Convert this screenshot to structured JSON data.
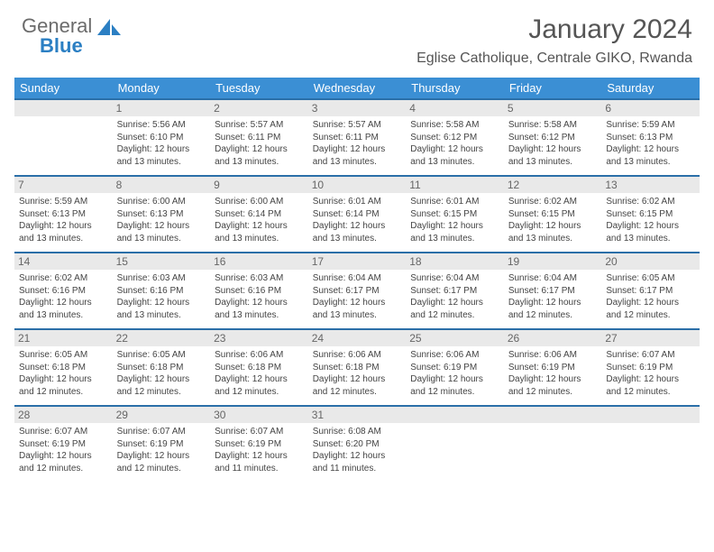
{
  "brand": {
    "part1": "General",
    "part2": "Blue"
  },
  "title": "January 2024",
  "location": "Eglise Catholique, Centrale GIKO, Rwanda",
  "colors": {
    "header_bg": "#3b8fd4",
    "header_border": "#2b6fa8",
    "daynum_bg": "#e9e9e9",
    "text": "#444444",
    "logo_gray": "#6b6b6b",
    "logo_blue": "#2b7fc3"
  },
  "day_headers": [
    "Sunday",
    "Monday",
    "Tuesday",
    "Wednesday",
    "Thursday",
    "Friday",
    "Saturday"
  ],
  "weeks": [
    [
      {
        "n": "",
        "sr": "",
        "ss": "",
        "dl": ""
      },
      {
        "n": "1",
        "sr": "5:56 AM",
        "ss": "6:10 PM",
        "dl": "12 hours and 13 minutes."
      },
      {
        "n": "2",
        "sr": "5:57 AM",
        "ss": "6:11 PM",
        "dl": "12 hours and 13 minutes."
      },
      {
        "n": "3",
        "sr": "5:57 AM",
        "ss": "6:11 PM",
        "dl": "12 hours and 13 minutes."
      },
      {
        "n": "4",
        "sr": "5:58 AM",
        "ss": "6:12 PM",
        "dl": "12 hours and 13 minutes."
      },
      {
        "n": "5",
        "sr": "5:58 AM",
        "ss": "6:12 PM",
        "dl": "12 hours and 13 minutes."
      },
      {
        "n": "6",
        "sr": "5:59 AM",
        "ss": "6:13 PM",
        "dl": "12 hours and 13 minutes."
      }
    ],
    [
      {
        "n": "7",
        "sr": "5:59 AM",
        "ss": "6:13 PM",
        "dl": "12 hours and 13 minutes."
      },
      {
        "n": "8",
        "sr": "6:00 AM",
        "ss": "6:13 PM",
        "dl": "12 hours and 13 minutes."
      },
      {
        "n": "9",
        "sr": "6:00 AM",
        "ss": "6:14 PM",
        "dl": "12 hours and 13 minutes."
      },
      {
        "n": "10",
        "sr": "6:01 AM",
        "ss": "6:14 PM",
        "dl": "12 hours and 13 minutes."
      },
      {
        "n": "11",
        "sr": "6:01 AM",
        "ss": "6:15 PM",
        "dl": "12 hours and 13 minutes."
      },
      {
        "n": "12",
        "sr": "6:02 AM",
        "ss": "6:15 PM",
        "dl": "12 hours and 13 minutes."
      },
      {
        "n": "13",
        "sr": "6:02 AM",
        "ss": "6:15 PM",
        "dl": "12 hours and 13 minutes."
      }
    ],
    [
      {
        "n": "14",
        "sr": "6:02 AM",
        "ss": "6:16 PM",
        "dl": "12 hours and 13 minutes."
      },
      {
        "n": "15",
        "sr": "6:03 AM",
        "ss": "6:16 PM",
        "dl": "12 hours and 13 minutes."
      },
      {
        "n": "16",
        "sr": "6:03 AM",
        "ss": "6:16 PM",
        "dl": "12 hours and 13 minutes."
      },
      {
        "n": "17",
        "sr": "6:04 AM",
        "ss": "6:17 PM",
        "dl": "12 hours and 13 minutes."
      },
      {
        "n": "18",
        "sr": "6:04 AM",
        "ss": "6:17 PM",
        "dl": "12 hours and 12 minutes."
      },
      {
        "n": "19",
        "sr": "6:04 AM",
        "ss": "6:17 PM",
        "dl": "12 hours and 12 minutes."
      },
      {
        "n": "20",
        "sr": "6:05 AM",
        "ss": "6:17 PM",
        "dl": "12 hours and 12 minutes."
      }
    ],
    [
      {
        "n": "21",
        "sr": "6:05 AM",
        "ss": "6:18 PM",
        "dl": "12 hours and 12 minutes."
      },
      {
        "n": "22",
        "sr": "6:05 AM",
        "ss": "6:18 PM",
        "dl": "12 hours and 12 minutes."
      },
      {
        "n": "23",
        "sr": "6:06 AM",
        "ss": "6:18 PM",
        "dl": "12 hours and 12 minutes."
      },
      {
        "n": "24",
        "sr": "6:06 AM",
        "ss": "6:18 PM",
        "dl": "12 hours and 12 minutes."
      },
      {
        "n": "25",
        "sr": "6:06 AM",
        "ss": "6:19 PM",
        "dl": "12 hours and 12 minutes."
      },
      {
        "n": "26",
        "sr": "6:06 AM",
        "ss": "6:19 PM",
        "dl": "12 hours and 12 minutes."
      },
      {
        "n": "27",
        "sr": "6:07 AM",
        "ss": "6:19 PM",
        "dl": "12 hours and 12 minutes."
      }
    ],
    [
      {
        "n": "28",
        "sr": "6:07 AM",
        "ss": "6:19 PM",
        "dl": "12 hours and 12 minutes."
      },
      {
        "n": "29",
        "sr": "6:07 AM",
        "ss": "6:19 PM",
        "dl": "12 hours and 12 minutes."
      },
      {
        "n": "30",
        "sr": "6:07 AM",
        "ss": "6:19 PM",
        "dl": "12 hours and 11 minutes."
      },
      {
        "n": "31",
        "sr": "6:08 AM",
        "ss": "6:20 PM",
        "dl": "12 hours and 11 minutes."
      },
      {
        "n": "",
        "sr": "",
        "ss": "",
        "dl": ""
      },
      {
        "n": "",
        "sr": "",
        "ss": "",
        "dl": ""
      },
      {
        "n": "",
        "sr": "",
        "ss": "",
        "dl": ""
      }
    ]
  ],
  "labels": {
    "sunrise": "Sunrise: ",
    "sunset": "Sunset: ",
    "daylight": "Daylight: "
  }
}
